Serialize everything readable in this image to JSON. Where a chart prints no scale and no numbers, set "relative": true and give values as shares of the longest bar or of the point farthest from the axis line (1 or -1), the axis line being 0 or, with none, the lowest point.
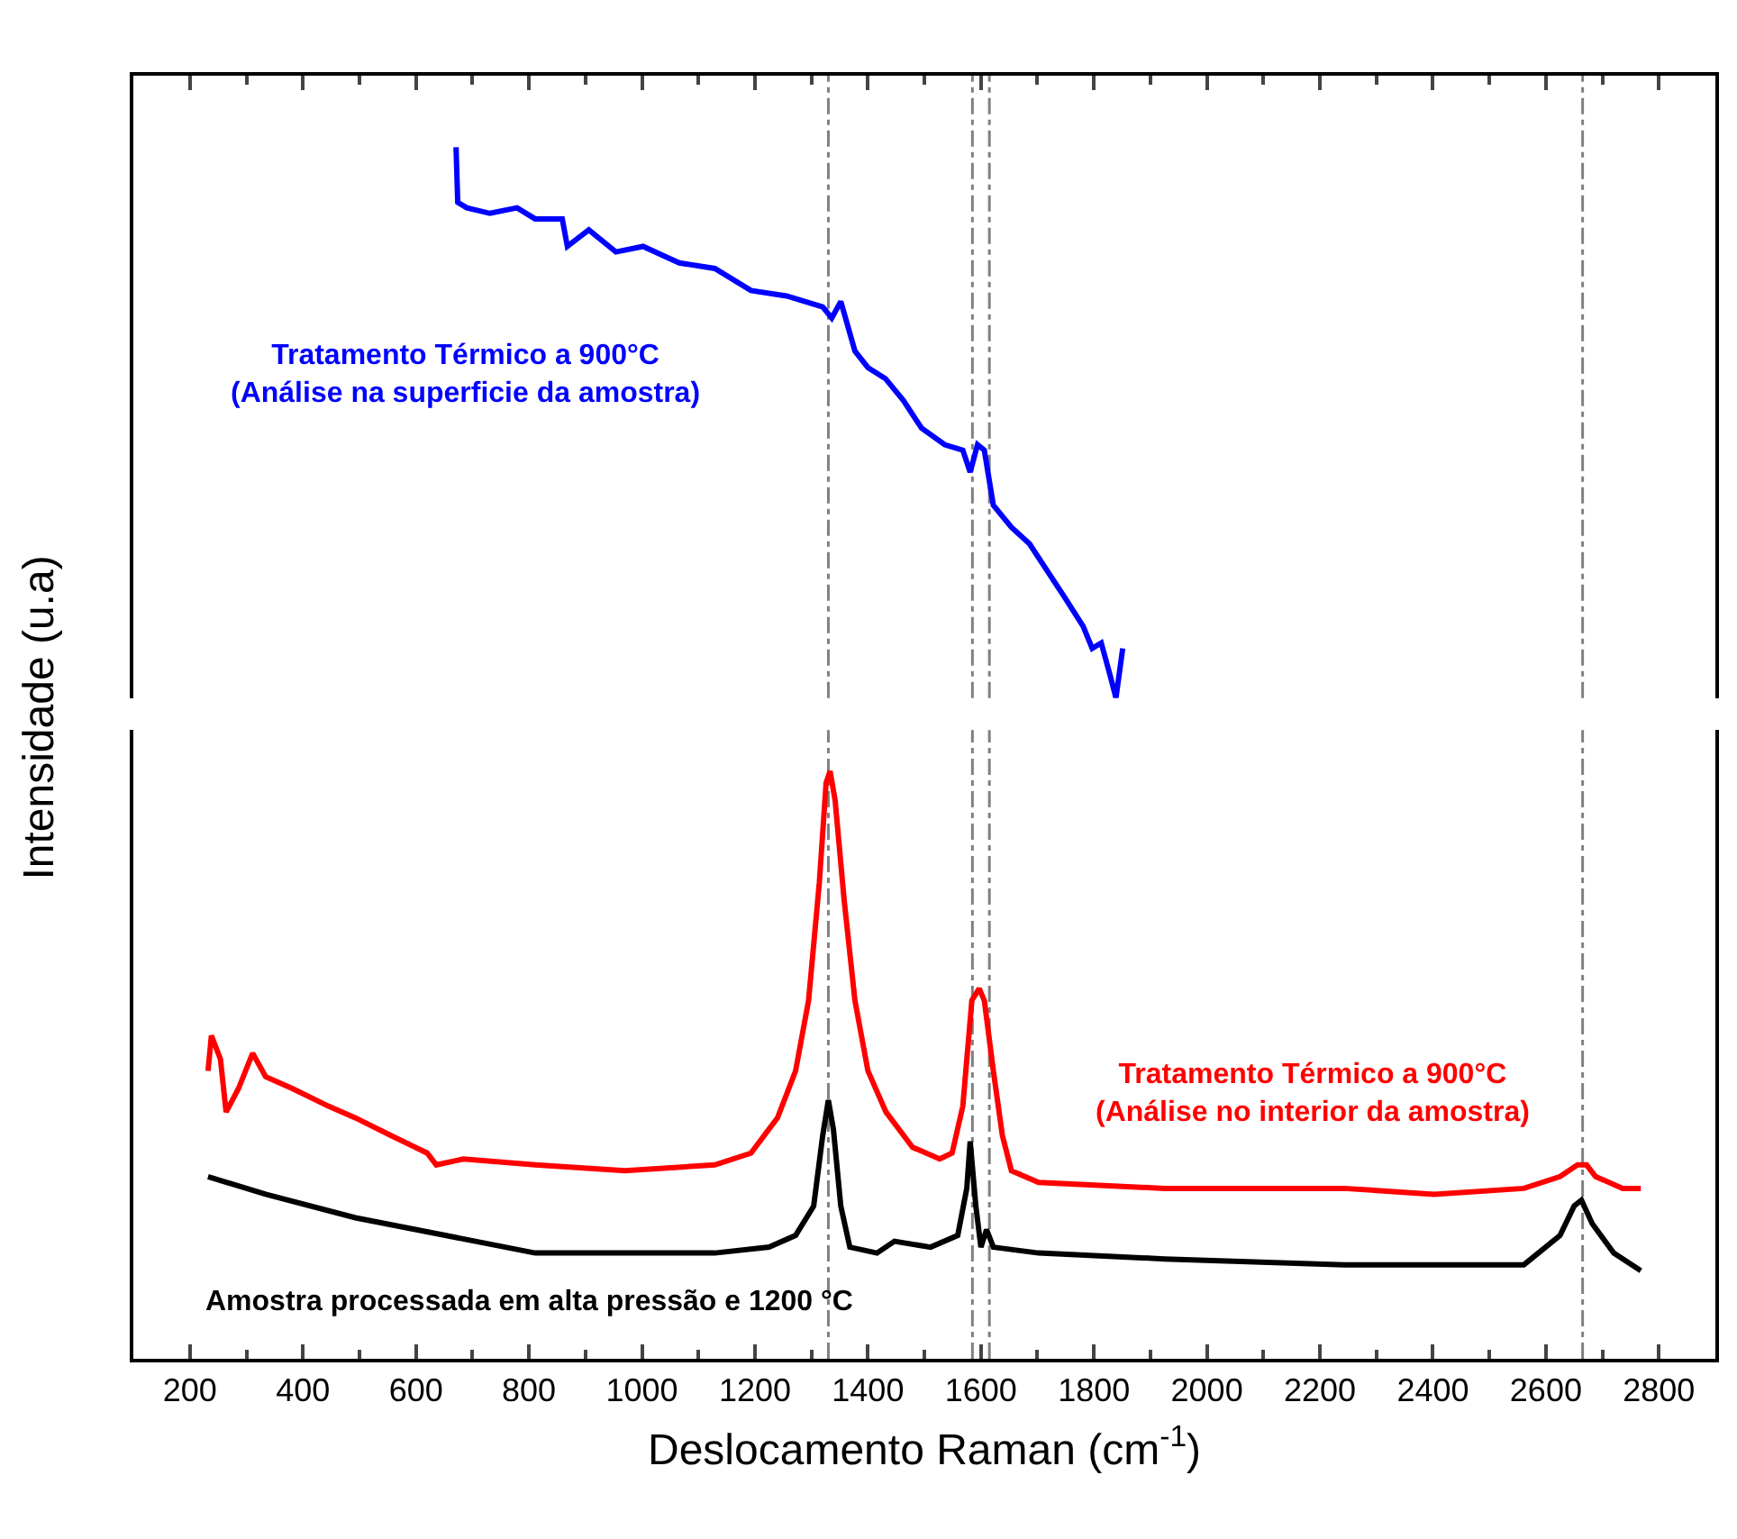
{
  "chart_data": [
    {
      "type": "line",
      "relative": true,
      "xlim": [
        100,
        2900
      ],
      "xticks": [
        200,
        400,
        600,
        800,
        1000,
        1200,
        1400,
        1600,
        1800,
        2000,
        2200,
        2400,
        2600,
        2800
      ],
      "tick_labels": false,
      "series": [
        {
          "name": "Tratamento Térmico a 900°C\n(Análise na superficie da amostra)",
          "color": "#0000ff",
          "x": [
            671,
            674,
            690,
            731,
            779,
            811,
            859,
            868,
            906,
            954,
            1002,
            1066,
            1129,
            1193,
            1256,
            1320,
            1336,
            1352,
            1377,
            1400,
            1431,
            1463,
            1495,
            1536,
            1568,
            1581,
            1594,
            1606,
            1622,
            1654,
            1686,
            1718,
            1750,
            1781,
            1797,
            1813,
            1829,
            1839,
            1851
          ],
          "values": [
            1,
            0.9,
            0.89,
            0.88,
            0.89,
            0.87,
            0.87,
            0.82,
            0.85,
            0.81,
            0.82,
            0.79,
            0.78,
            0.74,
            0.73,
            0.71,
            0.69,
            0.72,
            0.63,
            0.6,
            0.58,
            0.54,
            0.49,
            0.46,
            0.45,
            0.41,
            0.46,
            0.45,
            0.35,
            0.31,
            0.28,
            0.23,
            0.18,
            0.13,
            0.09,
            0.1,
            0.04,
            0,
            0.09
          ]
        }
      ],
      "ref_lines": [
        {
          "axis": "x",
          "value": 1330,
          "color": "#808080",
          "line_style": "dashdot"
        },
        {
          "axis": "x",
          "value": 1585,
          "color": "#808080",
          "line_style": "dashdot"
        },
        {
          "axis": "x",
          "value": 1615,
          "color": "#808080",
          "line_style": "dashdot"
        },
        {
          "axis": "x",
          "value": 2665,
          "color": "#808080",
          "line_style": "dashdot"
        }
      ]
    },
    {
      "type": "line",
      "relative": true,
      "xlabel": "Deslocamento Raman (cm$^{-1}$)",
      "ylabel": "Intensidade (u.a)",
      "xlim": [
        100,
        2900
      ],
      "xticks": [
        200,
        400,
        600,
        800,
        1000,
        1200,
        1400,
        1600,
        1800,
        2000,
        2200,
        2400,
        2600,
        2800
      ],
      "tick_labels": "x",
      "series": [
        {
          "name": "Tratamento Térmico a 900°C\n(Análise no interior da amostra)",
          "color": "#ff0000",
          "x": [
            232,
            238,
            254,
            264,
            286,
            311,
            334,
            381,
            445,
            493,
            556,
            620,
            636,
            684,
            811,
            970,
            1129,
            1193,
            1240,
            1272,
            1295,
            1314,
            1326,
            1333,
            1342,
            1358,
            1377,
            1400,
            1432,
            1479,
            1527,
            1549,
            1568,
            1584,
            1597,
            1606,
            1622,
            1638,
            1654,
            1702,
            1925,
            2243,
            2402,
            2561,
            2625,
            2656,
            2672,
            2688,
            2736,
            2768
          ],
          "values": [
            0.49,
            0.55,
            0.51,
            0.42,
            0.46,
            0.52,
            0.48,
            0.46,
            0.43,
            0.41,
            0.38,
            0.35,
            0.33,
            0.34,
            0.33,
            0.32,
            0.33,
            0.35,
            0.41,
            0.49,
            0.61,
            0.81,
            0.98,
            1,
            0.95,
            0.78,
            0.61,
            0.49,
            0.42,
            0.36,
            0.34,
            0.35,
            0.43,
            0.61,
            0.63,
            0.61,
            0.49,
            0.38,
            0.32,
            0.3,
            0.29,
            0.29,
            0.28,
            0.29,
            0.31,
            0.33,
            0.33,
            0.31,
            0.29,
            0.29
          ]
        },
        {
          "name": "Amostra processada em alta pressão e 1200 °C",
          "color": "#000000",
          "x": [
            232,
            334,
            493,
            652,
            811,
            970,
            1129,
            1225,
            1272,
            1304,
            1320,
            1330,
            1339,
            1352,
            1368,
            1416,
            1447,
            1511,
            1559,
            1575,
            1581,
            1591,
            1600,
            1610,
            1622,
            1702,
            1925,
            2243,
            2561,
            2625,
            2650,
            2663,
            2682,
            2720,
            2768
          ],
          "values": [
            0.31,
            0.28,
            0.24,
            0.21,
            0.18,
            0.18,
            0.18,
            0.19,
            0.21,
            0.26,
            0.38,
            0.44,
            0.39,
            0.26,
            0.19,
            0.18,
            0.2,
            0.19,
            0.21,
            0.29,
            0.37,
            0.26,
            0.19,
            0.22,
            0.19,
            0.18,
            0.17,
            0.16,
            0.16,
            0.21,
            0.26,
            0.27,
            0.23,
            0.18,
            0.15
          ]
        }
      ],
      "ref_lines": [
        {
          "axis": "x",
          "value": 1330,
          "color": "#808080",
          "line_style": "dashdot"
        },
        {
          "axis": "x",
          "value": 1585,
          "color": "#808080",
          "line_style": "dashdot"
        },
        {
          "axis": "x",
          "value": 1615,
          "color": "#808080",
          "line_style": "dashdot"
        },
        {
          "axis": "x",
          "value": 2665,
          "color": "#808080",
          "line_style": "dashdot"
        }
      ]
    }
  ]
}
